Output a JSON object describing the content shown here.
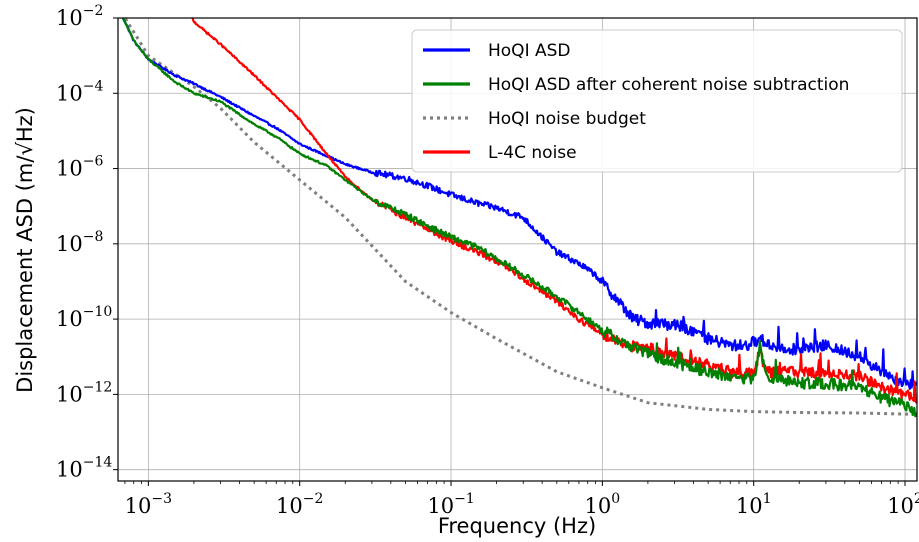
{
  "chart_data": {
    "type": "line",
    "xlabel": "Frequency (Hz)",
    "ylabel": "Displacement ASD (m/√Hz)",
    "xscale": "log",
    "yscale": "log",
    "xlim": [
      0.00063,
      120
    ],
    "ylim": [
      5e-15,
      0.01
    ],
    "grid": true,
    "legend_position": "top-right",
    "x_ticks": [
      {
        "base": "10",
        "exp": "−3"
      },
      {
        "base": "10",
        "exp": "−2"
      },
      {
        "base": "10",
        "exp": "−1"
      },
      {
        "base": "10",
        "exp": "0"
      },
      {
        "base": "10",
        "exp": "1"
      },
      {
        "base": "10",
        "exp": "2"
      }
    ],
    "y_ticks": [
      {
        "base": "10",
        "exp": "−14"
      },
      {
        "base": "10",
        "exp": "−12"
      },
      {
        "base": "10",
        "exp": "−10"
      },
      {
        "base": "10",
        "exp": "−8"
      },
      {
        "base": "10",
        "exp": "−6"
      },
      {
        "base": "10",
        "exp": "−4"
      },
      {
        "base": "10",
        "exp": "−2"
      }
    ],
    "series": [
      {
        "name": "HoQI ASD",
        "color": "#0000ff",
        "style": "solid",
        "noisy": true,
        "points": [
          [
            0.00063,
            0.02
          ],
          [
            0.0008,
            0.0025
          ],
          [
            0.001,
            0.0008
          ],
          [
            0.0015,
            0.0003
          ],
          [
            0.002,
            0.00018
          ],
          [
            0.003,
            8e-05
          ],
          [
            0.005,
            2.5e-05
          ],
          [
            0.007,
            1.2e-05
          ],
          [
            0.01,
            4.5e-06
          ],
          [
            0.015,
            2.2e-06
          ],
          [
            0.02,
            1.3e-06
          ],
          [
            0.03,
            8e-07
          ],
          [
            0.05,
            5.5e-07
          ],
          [
            0.07,
            3.5e-07
          ],
          [
            0.1,
            2e-07
          ],
          [
            0.15,
            1.2e-07
          ],
          [
            0.2,
            9e-08
          ],
          [
            0.3,
            5e-08
          ],
          [
            0.4,
            1.5e-08
          ],
          [
            0.5,
            6e-09
          ],
          [
            0.7,
            3e-09
          ],
          [
            0.9,
            1.5e-09
          ],
          [
            1.2,
            4e-10
          ],
          [
            1.6,
            1e-10
          ],
          [
            2,
            8e-11
          ],
          [
            3,
            7e-11
          ],
          [
            4,
            5e-11
          ],
          [
            5,
            3e-11
          ],
          [
            7,
            2e-11
          ],
          [
            9,
            2e-11
          ],
          [
            11,
            3e-11
          ],
          [
            13,
            2e-11
          ],
          [
            20,
            1.5e-11
          ],
          [
            30,
            2e-11
          ],
          [
            50,
            1e-11
          ],
          [
            70,
            4e-12
          ],
          [
            100,
            2e-12
          ],
          [
            120,
            1.5e-12
          ]
        ]
      },
      {
        "name": "HoQI ASD after coherent noise subtraction",
        "color": "#008000",
        "style": "solid",
        "noisy": true,
        "points": [
          [
            0.00063,
            0.02
          ],
          [
            0.0008,
            0.0025
          ],
          [
            0.001,
            0.0008
          ],
          [
            0.0015,
            0.0002
          ],
          [
            0.002,
            0.0001
          ],
          [
            0.003,
            6e-05
          ],
          [
            0.005,
            1.5e-05
          ],
          [
            0.007,
            7e-06
          ],
          [
            0.01,
            2.5e-06
          ],
          [
            0.015,
            1.2e-06
          ],
          [
            0.02,
            5e-07
          ],
          [
            0.03,
            1.5e-07
          ],
          [
            0.05,
            6e-08
          ],
          [
            0.07,
            3e-08
          ],
          [
            0.1,
            1.5e-08
          ],
          [
            0.15,
            8e-09
          ],
          [
            0.2,
            4e-09
          ],
          [
            0.3,
            1.5e-09
          ],
          [
            0.5,
            4e-10
          ],
          [
            0.7,
            1.5e-10
          ],
          [
            1,
            5e-11
          ],
          [
            1.5,
            2e-11
          ],
          [
            2,
            1.2e-11
          ],
          [
            3,
            7e-12
          ],
          [
            5,
            4e-12
          ],
          [
            7,
            3e-12
          ],
          [
            10,
            2.5e-12
          ],
          [
            11,
            2e-11
          ],
          [
            12,
            3e-12
          ],
          [
            20,
            2e-12
          ],
          [
            30,
            2e-12
          ],
          [
            50,
            1.5e-12
          ],
          [
            70,
            8e-13
          ],
          [
            100,
            5e-13
          ],
          [
            120,
            3.5e-13
          ]
        ]
      },
      {
        "name": "HoQI noise budget",
        "color": "#808080",
        "style": "dotted",
        "noisy": false,
        "points": [
          [
            0.00063,
            0.02
          ],
          [
            0.001,
            0.001
          ],
          [
            0.002,
            0.00015
          ],
          [
            0.003,
            4e-05
          ],
          [
            0.005,
            5e-06
          ],
          [
            0.01,
            5e-07
          ],
          [
            0.02,
            5e-08
          ],
          [
            0.05,
            1e-09
          ],
          [
            0.1,
            1.5e-10
          ],
          [
            0.2,
            3e-11
          ],
          [
            0.5,
            4e-12
          ],
          [
            1,
            1.5e-12
          ],
          [
            2,
            6e-13
          ],
          [
            5,
            4e-13
          ],
          [
            10,
            3.5e-13
          ],
          [
            20,
            3.3e-13
          ],
          [
            50,
            3.2e-13
          ],
          [
            100,
            3e-13
          ],
          [
            120,
            3e-13
          ]
        ]
      },
      {
        "name": "L-4C noise",
        "color": "#ff0000",
        "style": "solid",
        "noisy": true,
        "points": [
          [
            0.0018,
            0.02
          ],
          [
            0.002,
            0.008
          ],
          [
            0.003,
            0.002
          ],
          [
            0.005,
            0.0003
          ],
          [
            0.007,
            8e-05
          ],
          [
            0.01,
            2e-05
          ],
          [
            0.015,
            2.5e-06
          ],
          [
            0.02,
            6e-07
          ],
          [
            0.03,
            1.5e-07
          ],
          [
            0.05,
            5e-08
          ],
          [
            0.07,
            2.5e-08
          ],
          [
            0.1,
            1.2e-08
          ],
          [
            0.15,
            6e-09
          ],
          [
            0.2,
            3.5e-09
          ],
          [
            0.3,
            1.2e-09
          ],
          [
            0.5,
            3e-10
          ],
          [
            0.7,
            1e-10
          ],
          [
            1,
            4e-11
          ],
          [
            1.5,
            2e-11
          ],
          [
            2,
            1.5e-11
          ],
          [
            3,
            1e-11
          ],
          [
            5,
            6e-12
          ],
          [
            7,
            4e-12
          ],
          [
            10,
            3.5e-12
          ],
          [
            11,
            1.5e-11
          ],
          [
            12,
            4e-12
          ],
          [
            20,
            4e-12
          ],
          [
            30,
            3.5e-12
          ],
          [
            50,
            3e-12
          ],
          [
            70,
            1.5e-12
          ],
          [
            100,
            1e-12
          ],
          [
            120,
            8e-13
          ]
        ]
      }
    ]
  }
}
